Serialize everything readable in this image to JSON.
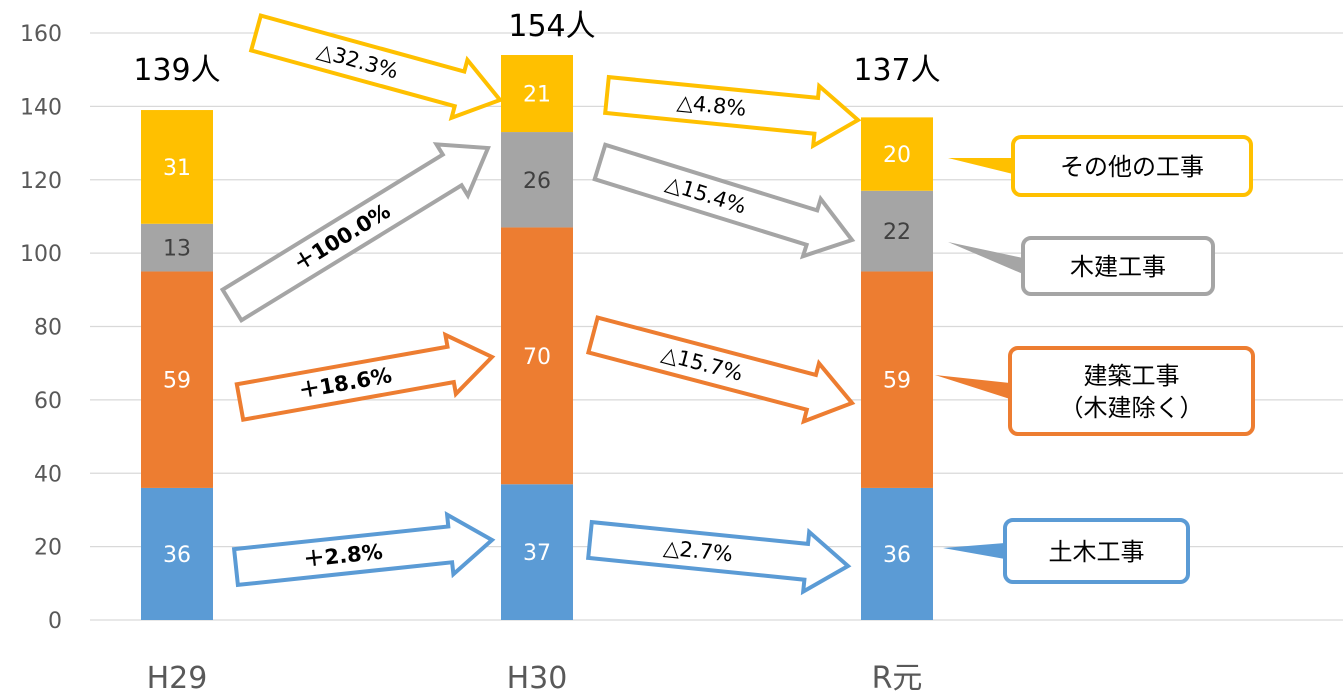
{
  "chart_data": {
    "type": "bar",
    "stacked": true,
    "categories": [
      "H29",
      "H30",
      "R元"
    ],
    "ylim": [
      0,
      160
    ],
    "yticks": [
      0,
      20,
      40,
      60,
      80,
      100,
      120,
      140,
      160
    ],
    "grid": true,
    "series": [
      {
        "name": "土木工事",
        "values": [
          36,
          37,
          36
        ],
        "color": "#5B9BD5"
      },
      {
        "name": "建築工事（木建除く）",
        "values": [
          59,
          70,
          59
        ],
        "color": "#ED7D31"
      },
      {
        "name": "木建工事",
        "values": [
          13,
          26,
          22
        ],
        "color": "#A5A5A5"
      },
      {
        "name": "その他の工事",
        "values": [
          31,
          21,
          20
        ],
        "color": "#FFC000"
      }
    ],
    "totals": [
      "139人",
      "154人",
      "137人"
    ],
    "changes": [
      {
        "series": 0,
        "from": 0,
        "to": 1,
        "text": "＋2.8%"
      },
      {
        "series": 0,
        "from": 1,
        "to": 2,
        "text": "△2.7%"
      },
      {
        "series": 1,
        "from": 0,
        "to": 1,
        "text": "＋18.6%"
      },
      {
        "series": 1,
        "from": 1,
        "to": 2,
        "text": "△15.7%"
      },
      {
        "series": 2,
        "from": 0,
        "to": 1,
        "text": "＋100.0%"
      },
      {
        "series": 2,
        "from": 1,
        "to": 2,
        "text": "△15.4%"
      },
      {
        "series": 3,
        "from": 0,
        "to": 1,
        "text": "△32.3%"
      },
      {
        "series": 3,
        "from": 1,
        "to": 2,
        "text": "△4.8%"
      }
    ],
    "callouts": [
      {
        "series": 3,
        "lines": [
          "その他の工事"
        ]
      },
      {
        "series": 2,
        "lines": [
          "木建工事"
        ]
      },
      {
        "series": 1,
        "lines": [
          "建築工事",
          "（木建除く）"
        ]
      },
      {
        "series": 0,
        "lines": [
          "土木工事"
        ]
      }
    ]
  }
}
